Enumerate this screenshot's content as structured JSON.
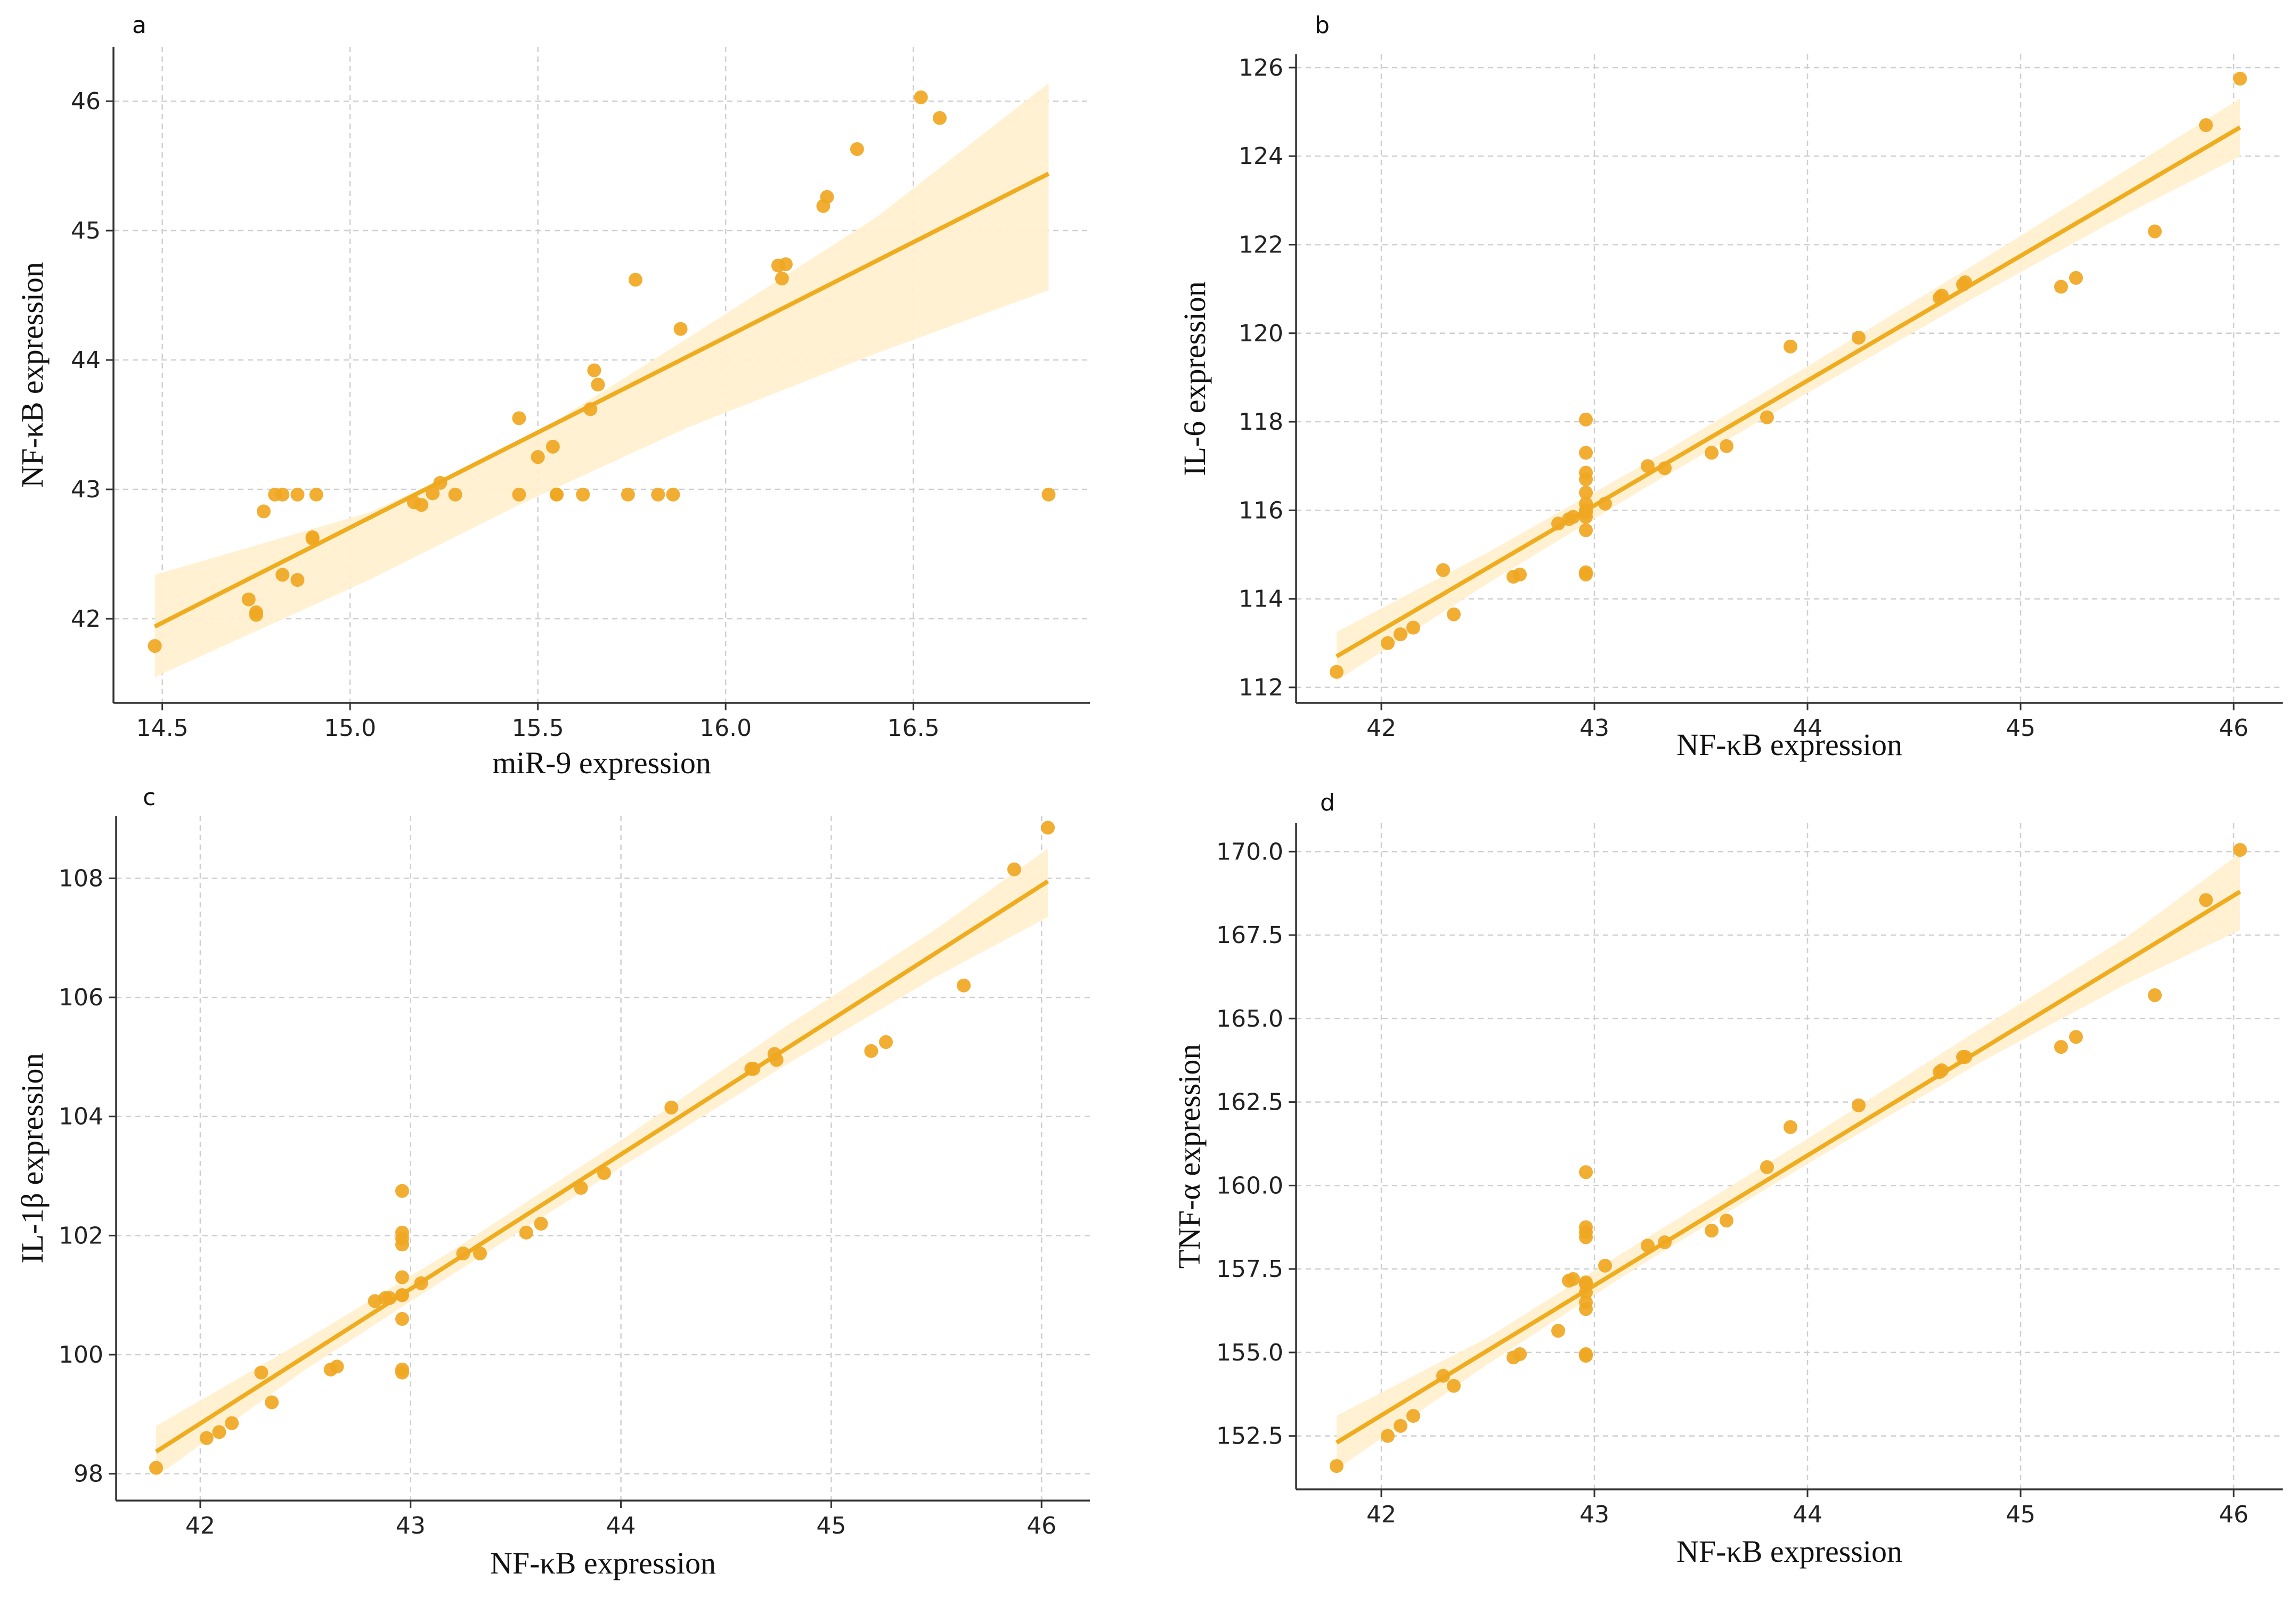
{
  "colors": {
    "point": "#f0a722",
    "line": "#f0ac1f",
    "band": "#fff0cc",
    "grid": "#cfcfcf"
  },
  "chart_data": [
    {
      "type": "scatter",
      "panel_label": "a",
      "title": "",
      "xlabel": "miR-9 expression",
      "ylabel": "NF-κB expression",
      "xlim": [
        14.37,
        16.97
      ],
      "ylim": [
        41.35,
        46.42
      ],
      "xticks": [
        14.5,
        15.0,
        15.5,
        16.0,
        16.5
      ],
      "xtick_labels": [
        "14.5",
        "15.0",
        "15.5",
        "16.0",
        "16.5"
      ],
      "yticks": [
        42,
        43,
        44,
        45,
        46
      ],
      "ytick_labels": [
        "42",
        "43",
        "44",
        "45",
        "46"
      ],
      "grid": true,
      "regression": {
        "x": [
          14.48,
          16.86
        ],
        "y": [
          41.94,
          45.44
        ]
      },
      "ci_band": {
        "x": [
          14.48,
          15.05,
          15.45,
          15.9,
          16.4,
          16.86
        ],
        "lower": [
          41.55,
          42.3,
          42.88,
          43.48,
          44.05,
          44.54
        ],
        "upper": [
          42.34,
          42.82,
          43.35,
          44.17,
          45.1,
          46.14
        ]
      },
      "points": {
        "x": [
          14.48,
          14.73,
          14.75,
          14.75,
          14.77,
          14.8,
          14.82,
          14.82,
          14.86,
          14.86,
          14.9,
          14.9,
          14.91,
          15.17,
          15.19,
          15.22,
          15.24,
          15.28,
          15.45,
          15.45,
          15.5,
          15.54,
          15.55,
          15.55,
          15.62,
          15.64,
          15.65,
          15.66,
          15.74,
          15.76,
          15.82,
          15.86,
          15.88,
          16.14,
          16.15,
          16.16,
          16.26,
          16.27,
          16.35,
          16.52,
          16.57,
          16.86
        ],
        "y": [
          41.79,
          42.15,
          42.05,
          42.03,
          42.83,
          42.96,
          42.34,
          42.96,
          42.3,
          42.96,
          42.62,
          42.63,
          42.96,
          42.9,
          42.88,
          42.97,
          43.05,
          42.96,
          43.55,
          42.96,
          43.25,
          43.33,
          42.96,
          42.96,
          42.96,
          43.62,
          43.92,
          43.81,
          42.96,
          44.62,
          42.96,
          42.96,
          44.24,
          44.73,
          44.63,
          44.74,
          45.19,
          45.26,
          45.63,
          46.03,
          45.87,
          42.96
        ]
      }
    },
    {
      "type": "scatter",
      "panel_label": "b",
      "title": "",
      "xlabel": "NF-κB expression",
      "ylabel": "IL-6 expression",
      "xlim": [
        41.6,
        46.23
      ],
      "ylim": [
        111.65,
        126.3
      ],
      "xticks": [
        42,
        43,
        44,
        45,
        46
      ],
      "xtick_labels": [
        "42",
        "43",
        "44",
        "45",
        "46"
      ],
      "yticks": [
        112,
        114,
        116,
        118,
        120,
        122,
        124,
        126
      ],
      "ytick_labels": [
        "112",
        "114",
        "116",
        "118",
        "120",
        "122",
        "124",
        "126"
      ],
      "grid": true,
      "regression": {
        "x": [
          41.79,
          46.03
        ],
        "y": [
          112.7,
          124.65
        ]
      },
      "ci_band": {
        "x": [
          41.79,
          42.5,
          43.2,
          44.0,
          44.8,
          45.5,
          46.03
        ],
        "lower": [
          112.15,
          114.35,
          116.4,
          118.65,
          120.85,
          122.7,
          124.0
        ],
        "upper": [
          113.25,
          115.05,
          116.95,
          119.25,
          121.6,
          123.7,
          125.3
        ]
      },
      "points": {
        "x": [
          41.79,
          42.03,
          42.09,
          42.15,
          42.29,
          42.34,
          42.62,
          42.65,
          42.83,
          42.88,
          42.9,
          42.96,
          42.96,
          42.96,
          42.96,
          42.96,
          42.96,
          42.96,
          42.96,
          42.96,
          42.96,
          42.96,
          42.96,
          43.05,
          43.25,
          43.33,
          43.55,
          43.62,
          43.81,
          43.92,
          44.24,
          44.62,
          44.63,
          44.73,
          44.74,
          45.19,
          45.26,
          45.63,
          45.87,
          46.03
        ],
        "y": [
          112.35,
          113.0,
          113.2,
          113.35,
          114.65,
          113.65,
          114.5,
          114.55,
          115.7,
          115.8,
          115.85,
          118.05,
          117.3,
          116.85,
          116.7,
          116.4,
          116.15,
          115.95,
          115.85,
          115.55,
          114.6,
          114.55,
          116.0,
          116.15,
          117.0,
          116.95,
          117.3,
          117.45,
          118.1,
          119.7,
          119.9,
          120.8,
          120.85,
          121.1,
          121.15,
          121.05,
          121.25,
          122.3,
          124.7,
          125.75
        ]
      }
    },
    {
      "type": "scatter",
      "panel_label": "c",
      "title": "",
      "xlabel": "NF-κB expression",
      "ylabel": "IL-1β expression",
      "xlim": [
        41.6,
        46.23
      ],
      "ylim": [
        97.55,
        109.05
      ],
      "xticks": [
        42,
        43,
        44,
        45,
        46
      ],
      "xtick_labels": [
        "42",
        "43",
        "44",
        "45",
        "46"
      ],
      "yticks": [
        98,
        100,
        102,
        104,
        106,
        108
      ],
      "ytick_labels": [
        "98",
        "100",
        "102",
        "104",
        "106",
        "108"
      ],
      "grid": true,
      "regression": {
        "x": [
          41.79,
          46.03
        ],
        "y": [
          98.37,
          107.95
        ]
      },
      "ci_band": {
        "x": [
          41.79,
          42.5,
          43.2,
          44.0,
          44.8,
          45.5,
          46.03
        ],
        "lower": [
          97.95,
          99.75,
          101.35,
          103.15,
          104.9,
          106.35,
          107.35
        ],
        "upper": [
          98.8,
          100.25,
          101.75,
          103.6,
          105.55,
          107.15,
          108.5
        ]
      },
      "points": {
        "x": [
          41.79,
          42.03,
          42.09,
          42.15,
          42.29,
          42.34,
          42.62,
          42.65,
          42.83,
          42.88,
          42.9,
          42.96,
          42.96,
          42.96,
          42.96,
          42.96,
          42.96,
          42.96,
          42.96,
          42.96,
          42.96,
          43.05,
          43.25,
          43.33,
          43.55,
          43.62,
          43.81,
          43.92,
          44.24,
          44.62,
          44.63,
          44.73,
          44.74,
          45.19,
          45.26,
          45.63,
          45.87,
          46.03
        ],
        "y": [
          98.1,
          98.6,
          98.7,
          98.85,
          99.7,
          99.2,
          99.75,
          99.8,
          100.9,
          100.95,
          100.95,
          102.75,
          102.05,
          101.95,
          101.85,
          101.3,
          101.0,
          101.0,
          100.6,
          99.75,
          99.7,
          101.2,
          101.7,
          101.7,
          102.05,
          102.2,
          102.8,
          103.05,
          104.15,
          104.8,
          104.8,
          105.05,
          104.95,
          105.1,
          105.25,
          106.2,
          108.15,
          108.85
        ]
      }
    },
    {
      "type": "scatter",
      "panel_label": "d",
      "title": "",
      "xlabel": "NF-κB expression",
      "ylabel": "TNF-α expression",
      "xlim": [
        41.6,
        46.23
      ],
      "ylim": [
        150.9,
        170.85
      ],
      "xticks": [
        42,
        43,
        44,
        45,
        46
      ],
      "xtick_labels": [
        "42",
        "43",
        "44",
        "45",
        "46"
      ],
      "yticks": [
        152.5,
        155.0,
        157.5,
        160.0,
        162.5,
        165.0,
        167.5,
        170.0
      ],
      "ytick_labels": [
        "152.5",
        "155.0",
        "157.5",
        "160.0",
        "162.5",
        "165.0",
        "167.5",
        "170.0"
      ],
      "grid": true,
      "regression": {
        "x": [
          41.79,
          46.03
        ],
        "y": [
          152.3,
          168.8
        ]
      },
      "ci_band": {
        "x": [
          41.79,
          42.5,
          43.2,
          44.0,
          44.8,
          45.5,
          46.03
        ],
        "lower": [
          151.5,
          154.65,
          157.55,
          160.65,
          163.65,
          166.05,
          167.65
        ],
        "upper": [
          153.1,
          155.45,
          158.25,
          161.4,
          164.65,
          167.45,
          169.95
        ]
      },
      "points": {
        "x": [
          41.79,
          42.03,
          42.09,
          42.15,
          42.29,
          42.34,
          42.62,
          42.65,
          42.83,
          42.88,
          42.9,
          42.96,
          42.96,
          42.96,
          42.96,
          42.96,
          42.96,
          42.96,
          42.96,
          42.96,
          42.96,
          42.96,
          43.05,
          43.25,
          43.33,
          43.55,
          43.62,
          43.81,
          43.92,
          44.24,
          44.62,
          44.63,
          44.73,
          44.74,
          45.19,
          45.26,
          45.63,
          45.87,
          46.03
        ],
        "y": [
          151.6,
          152.5,
          152.8,
          153.1,
          154.3,
          154.0,
          154.85,
          154.95,
          155.65,
          157.15,
          157.2,
          160.4,
          158.75,
          158.6,
          158.45,
          157.05,
          156.8,
          156.5,
          156.3,
          154.95,
          154.9,
          157.1,
          157.6,
          158.2,
          158.3,
          158.65,
          158.95,
          160.55,
          161.75,
          162.4,
          163.4,
          163.45,
          163.85,
          163.85,
          164.15,
          164.45,
          165.7,
          168.55,
          170.05
        ]
      }
    }
  ]
}
